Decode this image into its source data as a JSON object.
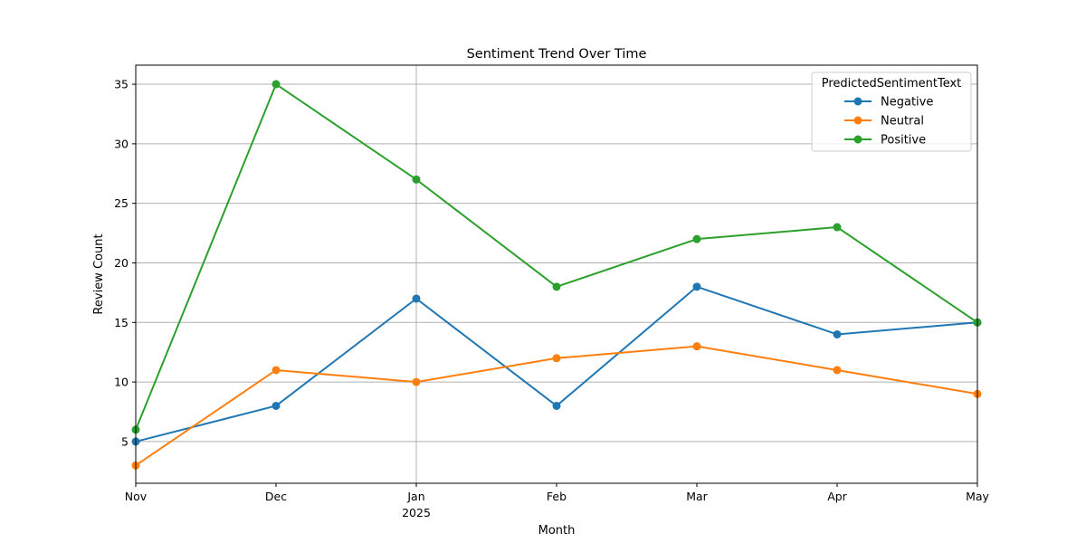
{
  "chart_data": {
    "type": "line",
    "title": "Sentiment Trend Over Time",
    "xlabel": "Month",
    "ylabel": "Review Count",
    "categories": [
      "Nov",
      "Dec",
      "Jan",
      "Feb",
      "Mar",
      "Apr",
      "May"
    ],
    "year_label": {
      "category": "Jan",
      "text": "2025"
    },
    "ylim": [
      1.5,
      36.6
    ],
    "yticks": [
      5,
      10,
      15,
      20,
      25,
      30,
      35
    ],
    "grid": {
      "y": true,
      "x_major_only": [
        "Jan"
      ]
    },
    "legend": {
      "title": "PredictedSentimentText",
      "position": "top-right"
    },
    "series": [
      {
        "name": "Negative",
        "color": "#1f77b4",
        "values": [
          5,
          8,
          17,
          8,
          18,
          14,
          15
        ]
      },
      {
        "name": "Neutral",
        "color": "#ff7f0e",
        "values": [
          3,
          11,
          10,
          12,
          13,
          11,
          9
        ]
      },
      {
        "name": "Positive",
        "color": "#2ca02c",
        "values": [
          6,
          35,
          27,
          18,
          22,
          23,
          15
        ]
      }
    ]
  }
}
